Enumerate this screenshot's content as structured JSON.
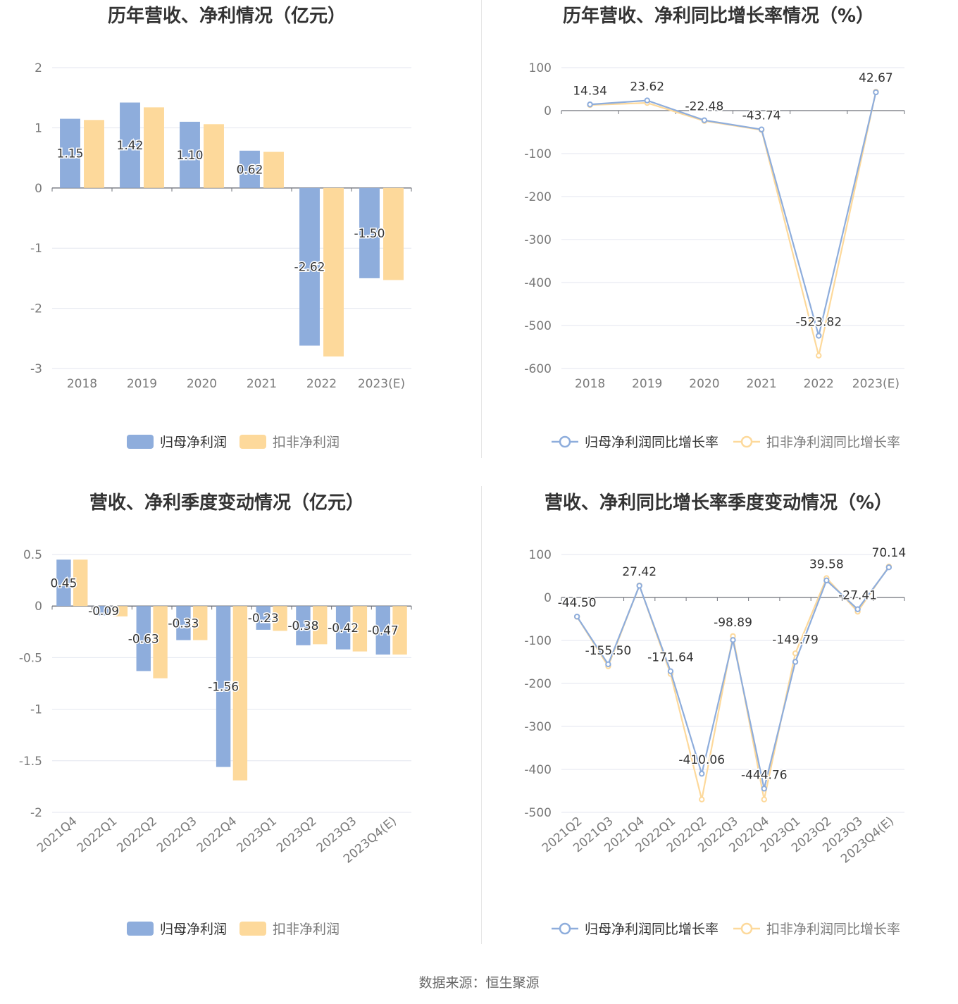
{
  "colors": {
    "series_a": "#8eaddc",
    "series_b": "#fdd99b",
    "grid": "#e3e6ef",
    "axis": "#6e7079",
    "text": "#333333",
    "muted": "#7a7a7a"
  },
  "source": {
    "label": "数据来源：",
    "value": "恒生聚源"
  },
  "chart_data": [
    {
      "type": "bar",
      "title": "历年营收、净利情况（亿元）",
      "categories": [
        "2018",
        "2019",
        "2020",
        "2021",
        "2022",
        "2023(E)"
      ],
      "ylim": [
        -3,
        2
      ],
      "yticks": [
        2,
        1,
        0,
        -1,
        -2,
        -3
      ],
      "grid": true,
      "legend": "bottom",
      "series": [
        {
          "name": "归母净利润",
          "values": [
            1.15,
            1.42,
            1.1,
            0.62,
            -2.62,
            -1.5
          ],
          "labels": [
            "1.15",
            "1.42",
            "1.10",
            "0.62",
            "-2.62",
            "-1.50"
          ]
        },
        {
          "name": "扣非净利润",
          "values": [
            1.13,
            1.34,
            1.06,
            0.6,
            -2.8,
            -1.53
          ]
        }
      ]
    },
    {
      "type": "line",
      "title": "历年营收、净利同比增长率情况（%）",
      "categories": [
        "2018",
        "2019",
        "2020",
        "2021",
        "2022",
        "2023(E)"
      ],
      "ylim": [
        -600,
        100
      ],
      "yticks": [
        100,
        0,
        -100,
        -200,
        -300,
        -400,
        -500,
        -600
      ],
      "grid": true,
      "legend": "bottom",
      "series": [
        {
          "name": "归母净利润同比增长率",
          "values": [
            14.34,
            23.62,
            -22.48,
            -43.74,
            -523.82,
            42.67
          ],
          "labels": [
            "14.34",
            "23.62",
            "-22.48",
            "-43.74",
            "-523.82",
            "42.67"
          ]
        },
        {
          "name": "扣非净利润同比增长率",
          "values": [
            13.0,
            18.0,
            -24.0,
            -45.0,
            -570.0,
            44.0
          ]
        }
      ]
    },
    {
      "type": "bar",
      "title": "营收、净利季度变动情况（亿元）",
      "categories": [
        "2021Q4",
        "2022Q1",
        "2022Q2",
        "2022Q3",
        "2022Q4",
        "2023Q1",
        "2023Q2",
        "2023Q3",
        "2023Q4(E)"
      ],
      "ylim": [
        -2,
        0.5
      ],
      "yticks": [
        0.5,
        0,
        -0.5,
        -1,
        -1.5,
        -2
      ],
      "grid": true,
      "legend": "bottom",
      "series": [
        {
          "name": "归母净利润",
          "values": [
            0.45,
            -0.09,
            -0.63,
            -0.33,
            -1.56,
            -0.23,
            -0.38,
            -0.42,
            -0.47
          ],
          "labels": [
            "0.45",
            "-0.09",
            "-0.63",
            "-0.33",
            "-1.56",
            "-0.23",
            "-0.38",
            "-0.42",
            "-0.47"
          ]
        },
        {
          "name": "扣非净利润",
          "values": [
            0.45,
            -0.1,
            -0.7,
            -0.33,
            -1.69,
            -0.24,
            -0.37,
            -0.44,
            -0.47
          ]
        }
      ]
    },
    {
      "type": "line",
      "title": "营收、净利同比增长率季度变动情况（%）",
      "categories": [
        "2021Q2",
        "2021Q3",
        "2021Q4",
        "2022Q1",
        "2022Q2",
        "2022Q3",
        "2022Q4",
        "2023Q1",
        "2023Q2",
        "2023Q3",
        "2023Q4(E)"
      ],
      "ylim": [
        -500,
        100
      ],
      "yticks": [
        100,
        0,
        -100,
        -200,
        -300,
        -400,
        -500
      ],
      "grid": true,
      "legend": "bottom",
      "series": [
        {
          "name": "归母净利润同比增长率",
          "values": [
            -44.5,
            -155.5,
            27.42,
            -171.64,
            -410.06,
            -98.89,
            -444.76,
            -149.79,
            39.58,
            -27.41,
            70.14
          ],
          "labels": [
            "-44.50",
            "-155.50",
            "27.42",
            "-171.64",
            "-410.06",
            "-98.89",
            "-444.76",
            "-149.79",
            "39.58",
            "-27.41",
            "70.14"
          ]
        },
        {
          "name": "扣非净利润同比增长率",
          "values": [
            -45.0,
            -160.0,
            28.0,
            -178.0,
            -470.0,
            -90.0,
            -470.0,
            -130.0,
            45.0,
            -33.0,
            72.0
          ]
        }
      ]
    }
  ]
}
